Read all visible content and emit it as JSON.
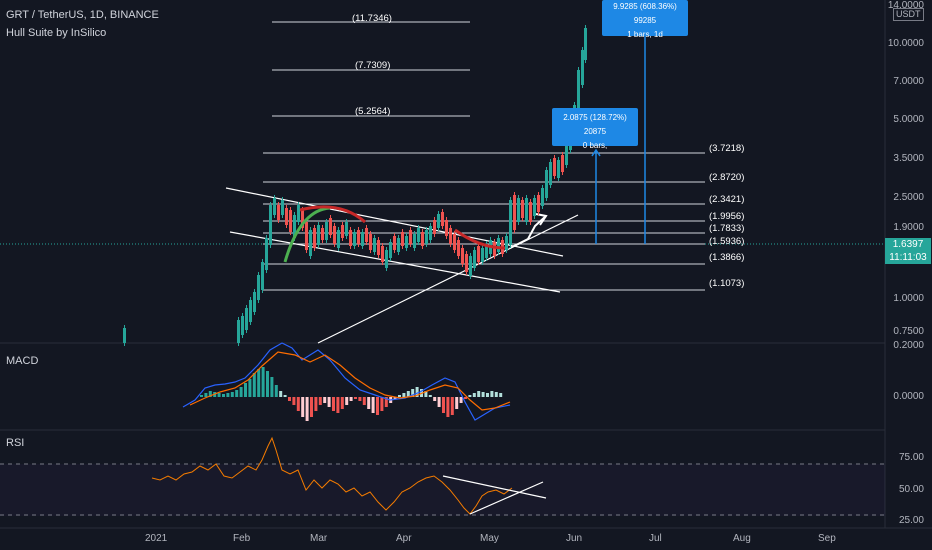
{
  "header": {
    "symbol_line": "GRT / TetherUS, 1D, BINANCE",
    "indicator_line": "Hull Suite by InSilico"
  },
  "panes": {
    "macd_label": "MACD",
    "rsi_label": "RSI"
  },
  "currency_badge": "USDT",
  "price_axis": {
    "ticks": [
      "14.0000",
      "10.0000",
      "7.0000",
      "5.0000",
      "3.5000",
      "2.5000",
      "1.9000",
      "1.0000",
      "0.7500"
    ],
    "current_price": "1.6397",
    "countdown": "11:11:03"
  },
  "macd_axis": {
    "ticks": [
      "0.2000",
      "0.0000"
    ]
  },
  "rsi_axis": {
    "ticks": [
      "75.00",
      "50.00",
      "25.00"
    ]
  },
  "time_axis": {
    "ticks": [
      "2021",
      "Feb",
      "Mar",
      "Apr",
      "May",
      "Jun",
      "Jul",
      "Aug",
      "Sep"
    ]
  },
  "fib_levels": [
    "(11.7346)",
    "(7.7309)",
    "(5.2564)",
    "(3.7218)",
    "(2.8720)",
    "(2.3421)",
    "(1.9956)",
    "(1.7833)",
    "(1.5936)",
    "(1.3866)",
    "(1.1073)"
  ],
  "measure_boxes": [
    {
      "line1": "9.9285 (608.36%) 99285",
      "line2": "1 bars, 1d"
    },
    {
      "line1": "2.0875 (128.72%) 20875",
      "line2": "0 bars,"
    }
  ],
  "colors": {
    "background": "#131722",
    "up": "#26a69a",
    "down": "#ef5350",
    "hull_up": "#4caf50",
    "hull_down": "#c62828",
    "macd": "#2962ff",
    "signal": "#ff6d00",
    "rsi": "#f57c00",
    "measure": "#1e88e5"
  }
}
